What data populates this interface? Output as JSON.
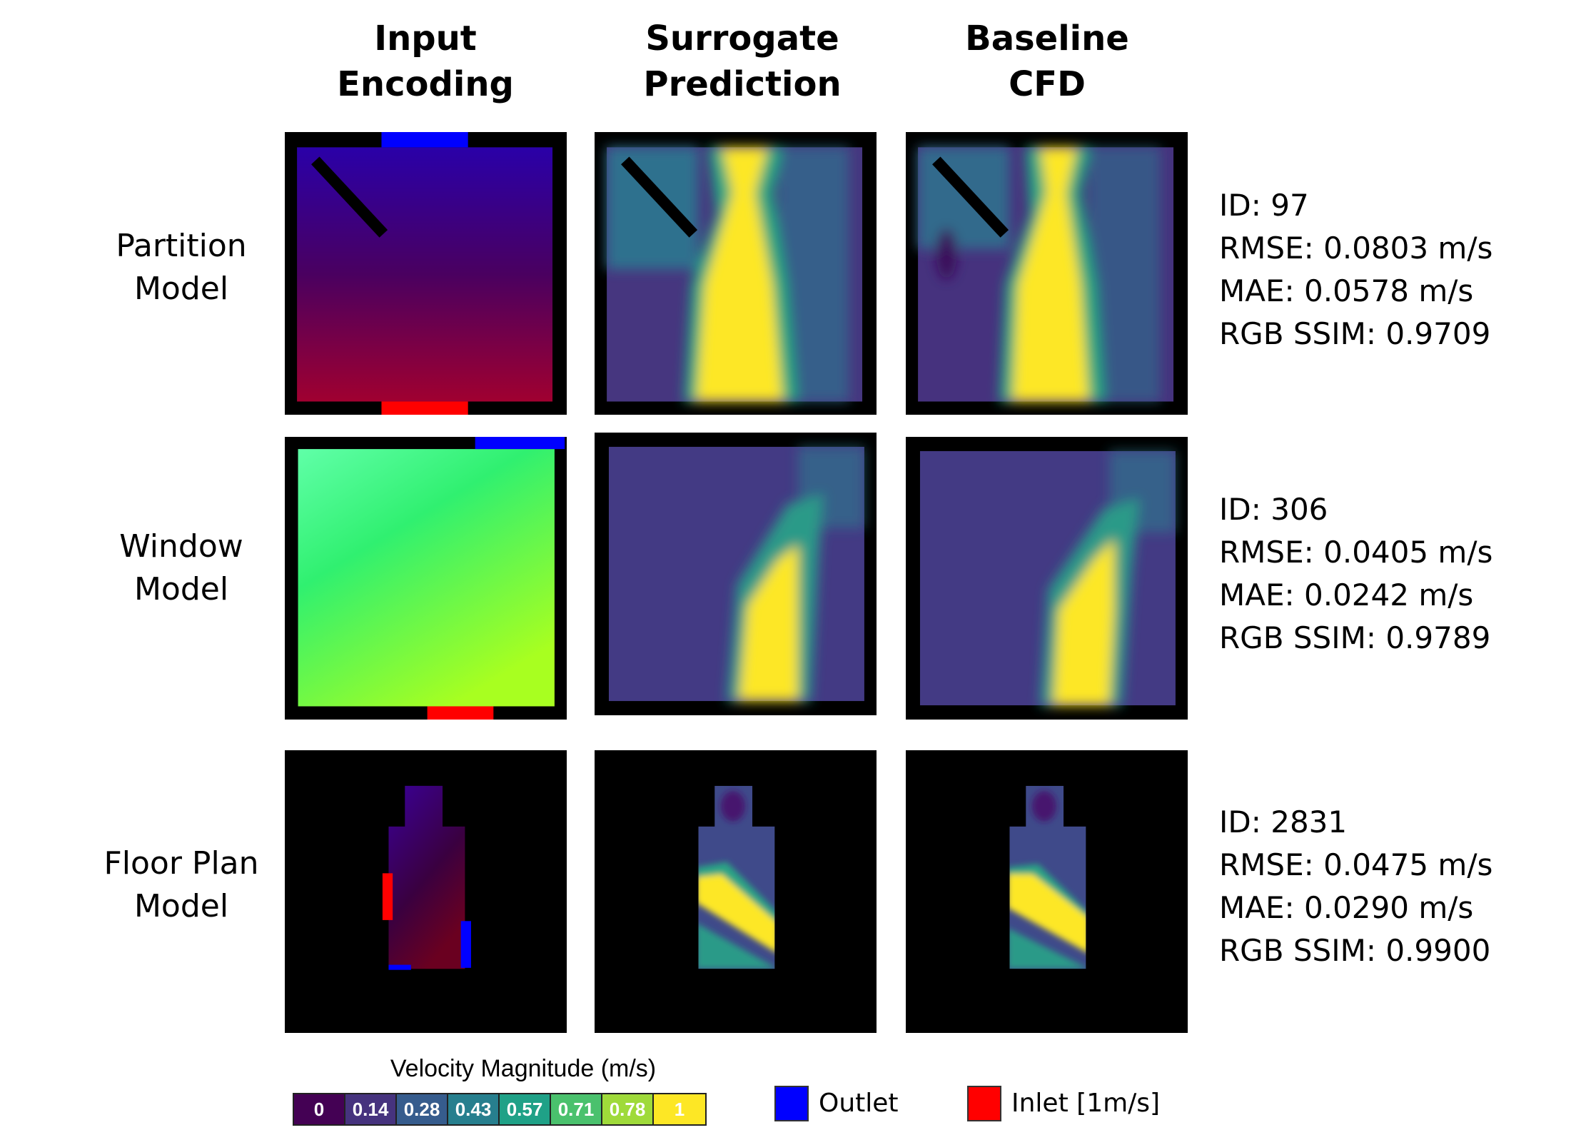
{
  "columns": [
    "Input\nEncoding",
    "Surrogate\nPrediction",
    "Baseline\nCFD"
  ],
  "column_lines": [
    [
      "Input",
      "Encoding"
    ],
    [
      "Surrogate",
      "Prediction"
    ],
    [
      "Baseline",
      "CFD"
    ]
  ],
  "rows": [
    {
      "label": [
        "Partition",
        "Model"
      ],
      "stats": [
        "ID: 97",
        "RMSE: 0.0803 m/s",
        "MAE: 0.0578 m/s",
        "RGB SSIM: 0.9709"
      ]
    },
    {
      "label": [
        "Window",
        "Model"
      ],
      "stats": [
        "ID: 306",
        "RMSE: 0.0405 m/s",
        "MAE: 0.0242 m/s",
        "RGB SSIM: 0.9789"
      ]
    },
    {
      "label": [
        "Floor Plan",
        "Model"
      ],
      "stats": [
        "ID: 2831",
        "RMSE: 0.0475 m/s",
        "MAE: 0.0290 m/s",
        "RGB SSIM: 0.9900"
      ]
    }
  ],
  "colorbar": {
    "title": "Velocity Magnitude (m/s)",
    "ticks": [
      "0",
      "0.14",
      "0.28",
      "0.43",
      "0.57",
      "0.71",
      "0.78",
      "1"
    ],
    "colors": [
      "#440154",
      "#46337e",
      "#365c8d",
      "#277f8e",
      "#1fa187",
      "#4ac16d",
      "#9fda3a",
      "#fde725"
    ]
  },
  "legend": [
    {
      "label": "Outlet",
      "color": "#0000ff"
    },
    {
      "label": "Inlet [1m/s]",
      "color": "#ff0000"
    }
  ]
}
